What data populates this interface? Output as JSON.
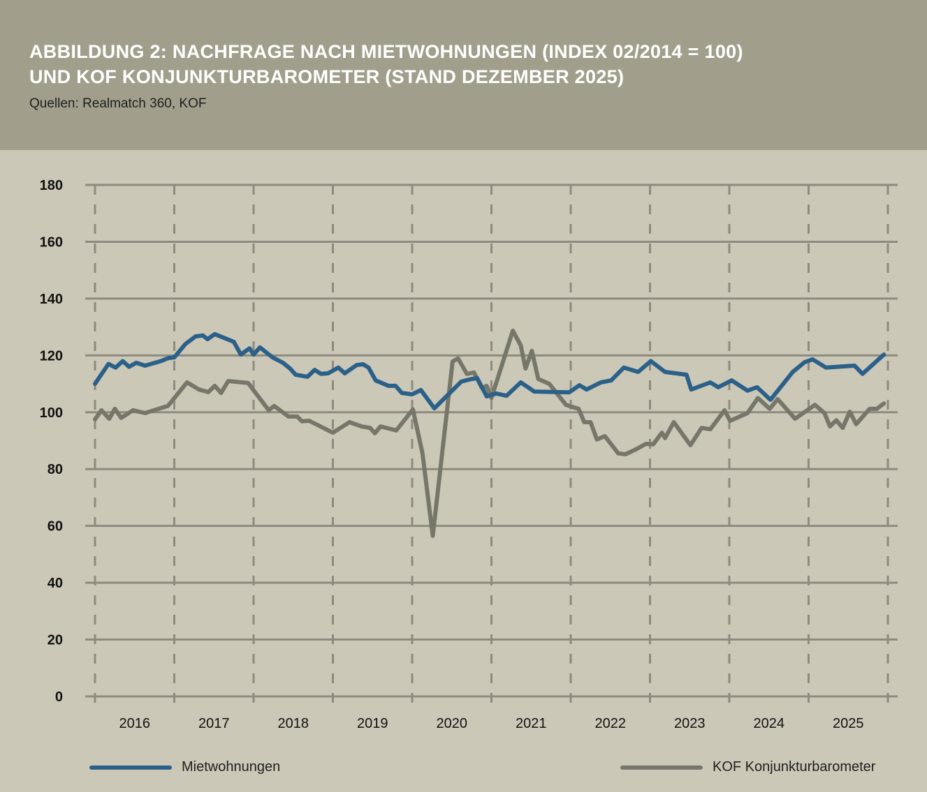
{
  "header": {
    "title_line1": "ABBILDUNG 2: NACHFRAGE NACH MIETWOHNUNGEN (INDEX 02/2014 = 100)",
    "title_line2": "UND KOF KONJUNKTURBAROMETER (STAND DEZEMBER 2025)",
    "source": "Quellen: Realmatch 360, KOF"
  },
  "colors": {
    "header_bg": "#a19f8c",
    "plot_bg": "#ccc8b8",
    "mietwohnungen": "#2b6189",
    "kof": "#77766a",
    "grid": "#8e8a7e"
  },
  "chart_data": {
    "type": "line",
    "title": "ABBILDUNG 2: NACHFRAGE NACH MIETWOHNUNGEN (INDEX 02/2014 = 100) UND KOF KONJUNKTURBAROMETER (STAND DEZEMBER 2025)",
    "xlabel": "",
    "ylabel": "",
    "ylim": [
      0,
      180
    ],
    "xlim": [
      2015.9,
      2026.13
    ],
    "yticks": [
      "0",
      "20",
      "40",
      "60",
      "80",
      "100",
      "120",
      "140",
      "160",
      "180"
    ],
    "xticks": [
      "2016",
      "2017",
      "2018",
      "2019",
      "2020",
      "2021",
      "2022",
      "2023",
      "2024",
      "2025"
    ],
    "grid": "horizontal solid, vertical dashed at year starts",
    "legend": "bottom",
    "series": [
      {
        "name": "Mietwohnungen",
        "color": "#2b6189",
        "points": [
          [
            2016.0,
            110
          ],
          [
            2016.17,
            117
          ],
          [
            2016.26,
            115.7
          ],
          [
            2016.35,
            118
          ],
          [
            2016.43,
            116
          ],
          [
            2016.52,
            117.4
          ],
          [
            2016.63,
            116.4
          ],
          [
            2016.83,
            118
          ],
          [
            2016.92,
            119
          ],
          [
            2017.0,
            119.3
          ],
          [
            2017.14,
            124
          ],
          [
            2017.27,
            126.7
          ],
          [
            2017.36,
            127
          ],
          [
            2017.42,
            125.7
          ],
          [
            2017.51,
            127.5
          ],
          [
            2017.75,
            124.8
          ],
          [
            2017.84,
            120.3
          ],
          [
            2017.95,
            122.5
          ],
          [
            2018.0,
            120.3
          ],
          [
            2018.08,
            122.8
          ],
          [
            2018.24,
            119.3
          ],
          [
            2018.37,
            117.4
          ],
          [
            2018.46,
            115.4
          ],
          [
            2018.53,
            113.2
          ],
          [
            2018.68,
            112.5
          ],
          [
            2018.77,
            114.9
          ],
          [
            2018.85,
            113.5
          ],
          [
            2018.94,
            113.7
          ],
          [
            2019.07,
            115.7
          ],
          [
            2019.15,
            113.7
          ],
          [
            2019.3,
            116.6
          ],
          [
            2019.38,
            116.9
          ],
          [
            2019.45,
            115.7
          ],
          [
            2019.54,
            111.2
          ],
          [
            2019.7,
            109.3
          ],
          [
            2019.79,
            109.3
          ],
          [
            2019.87,
            106.8
          ],
          [
            2020.0,
            106.3
          ],
          [
            2020.11,
            107.8
          ],
          [
            2020.28,
            101.4
          ],
          [
            2020.62,
            110.8
          ],
          [
            2020.75,
            111.7
          ],
          [
            2020.82,
            112
          ],
          [
            2020.94,
            105.6
          ],
          [
            2021.06,
            106.6
          ],
          [
            2021.19,
            105.8
          ],
          [
            2021.37,
            110.5
          ],
          [
            2021.54,
            107.3
          ],
          [
            2021.98,
            107
          ],
          [
            2022.11,
            109.5
          ],
          [
            2022.2,
            108
          ],
          [
            2022.38,
            110.5
          ],
          [
            2022.51,
            111.2
          ],
          [
            2022.67,
            115.7
          ],
          [
            2022.85,
            114.2
          ],
          [
            2023.01,
            118
          ],
          [
            2023.19,
            114.2
          ],
          [
            2023.46,
            113.2
          ],
          [
            2023.52,
            108
          ],
          [
            2023.76,
            110.5
          ],
          [
            2023.86,
            108.8
          ],
          [
            2024.03,
            111.2
          ],
          [
            2024.23,
            107.6
          ],
          [
            2024.35,
            108.8
          ],
          [
            2024.52,
            104.4
          ],
          [
            2024.8,
            114.2
          ],
          [
            2024.95,
            117.6
          ],
          [
            2025.05,
            118.6
          ],
          [
            2025.22,
            115.7
          ],
          [
            2025.58,
            116.4
          ],
          [
            2025.68,
            113.5
          ],
          [
            2025.95,
            120.3
          ]
        ]
      },
      {
        "name": "KOF Konjunkturbarometer",
        "color": "#77766a",
        "points": [
          [
            2016.0,
            97.5
          ],
          [
            2016.08,
            100.7
          ],
          [
            2016.18,
            97.7
          ],
          [
            2016.25,
            101.2
          ],
          [
            2016.33,
            98
          ],
          [
            2016.48,
            100.7
          ],
          [
            2016.63,
            99.7
          ],
          [
            2016.92,
            102.2
          ],
          [
            2017.16,
            110.5
          ],
          [
            2017.31,
            108
          ],
          [
            2017.43,
            107.1
          ],
          [
            2017.51,
            109.3
          ],
          [
            2017.59,
            106.8
          ],
          [
            2017.68,
            111
          ],
          [
            2017.93,
            110.3
          ],
          [
            2018.19,
            100.7
          ],
          [
            2018.26,
            102.2
          ],
          [
            2018.44,
            98.5
          ],
          [
            2018.55,
            98.5
          ],
          [
            2018.61,
            96.8
          ],
          [
            2018.7,
            97
          ],
          [
            2019.0,
            92.8
          ],
          [
            2019.21,
            96.5
          ],
          [
            2019.36,
            95
          ],
          [
            2019.47,
            94.5
          ],
          [
            2019.53,
            92.6
          ],
          [
            2019.6,
            95
          ],
          [
            2019.8,
            93.6
          ],
          [
            2020.01,
            101
          ],
          [
            2020.13,
            85.5
          ],
          [
            2020.26,
            56.5
          ],
          [
            2020.51,
            117.9
          ],
          [
            2020.58,
            118.9
          ],
          [
            2020.69,
            113.5
          ],
          [
            2020.78,
            114
          ],
          [
            2020.88,
            108.5
          ],
          [
            2020.94,
            109.3
          ],
          [
            2021.0,
            105
          ],
          [
            2021.27,
            128.7
          ],
          [
            2021.37,
            123.5
          ],
          [
            2021.43,
            115.4
          ],
          [
            2021.51,
            121.6
          ],
          [
            2021.59,
            111.7
          ],
          [
            2021.73,
            110
          ],
          [
            2021.94,
            102.6
          ],
          [
            2022.1,
            101.2
          ],
          [
            2022.17,
            96.5
          ],
          [
            2022.25,
            96.5
          ],
          [
            2022.33,
            90.4
          ],
          [
            2022.43,
            91.6
          ],
          [
            2022.6,
            85.5
          ],
          [
            2022.69,
            85.2
          ],
          [
            2022.82,
            86.9
          ],
          [
            2022.95,
            88.9
          ],
          [
            2023.04,
            88.7
          ],
          [
            2023.15,
            92.8
          ],
          [
            2023.19,
            90.9
          ],
          [
            2023.3,
            96.5
          ],
          [
            2023.51,
            88.4
          ],
          [
            2023.65,
            94.5
          ],
          [
            2023.76,
            94
          ],
          [
            2023.94,
            100.7
          ],
          [
            2024.01,
            97
          ],
          [
            2024.23,
            99.7
          ],
          [
            2024.36,
            105
          ],
          [
            2024.51,
            101.2
          ],
          [
            2024.61,
            104.6
          ],
          [
            2024.83,
            97.7
          ],
          [
            2025.08,
            102.6
          ],
          [
            2025.2,
            99.7
          ],
          [
            2025.27,
            95
          ],
          [
            2025.35,
            97.2
          ],
          [
            2025.43,
            94.5
          ],
          [
            2025.52,
            100.2
          ],
          [
            2025.6,
            95.8
          ],
          [
            2025.77,
            101.2
          ],
          [
            2025.86,
            101.2
          ],
          [
            2025.95,
            103.1
          ]
        ]
      }
    ]
  },
  "legend": {
    "item1": "Mietwohnungen",
    "item2": "KOF Konjunkturbarometer"
  }
}
